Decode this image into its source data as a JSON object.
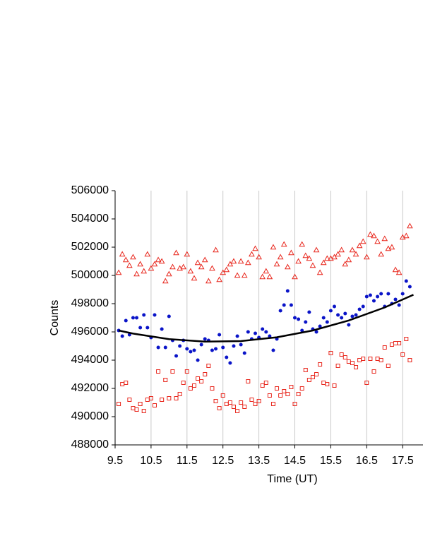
{
  "chart_data": {
    "type": "scatter",
    "x_label": "Time (UT)",
    "y_label": "Counts",
    "xlim": [
      9.5,
      18.3
    ],
    "ylim": [
      488000,
      506000
    ],
    "xticks": [
      9.5,
      10.5,
      11.5,
      12.5,
      13.5,
      14.5,
      15.5,
      16.5,
      17.5
    ],
    "yticks": [
      488000,
      490000,
      492000,
      494000,
      496000,
      498000,
      500000,
      502000,
      504000,
      506000
    ],
    "grid": "x",
    "x": [
      9.6,
      9.7,
      9.8,
      9.9,
      10.0,
      10.1,
      10.2,
      10.3,
      10.4,
      10.5,
      10.6,
      10.7,
      10.8,
      10.9,
      11.0,
      11.1,
      11.2,
      11.3,
      11.4,
      11.5,
      11.6,
      11.7,
      11.8,
      11.9,
      12.0,
      12.1,
      12.2,
      12.3,
      12.4,
      12.5,
      12.6,
      12.7,
      12.8,
      12.9,
      13.0,
      13.1,
      13.2,
      13.3,
      13.4,
      13.5,
      13.6,
      13.7,
      13.8,
      13.9,
      14.0,
      14.1,
      14.2,
      14.3,
      14.4,
      14.5,
      14.6,
      14.7,
      14.8,
      14.9,
      15.0,
      15.1,
      15.2,
      15.3,
      15.4,
      15.5,
      15.6,
      15.7,
      15.8,
      15.9,
      16.0,
      16.1,
      16.2,
      16.3,
      16.4,
      16.5,
      16.6,
      16.7,
      16.8,
      16.9,
      17.0,
      17.1,
      17.2,
      17.3,
      17.4,
      17.5,
      17.6,
      17.7
    ],
    "series": [
      {
        "marker": "triangle",
        "color": "#e8261c",
        "values": [
          500200,
          501500,
          501100,
          500700,
          501300,
          500100,
          500800,
          500300,
          501500,
          500500,
          500800,
          501100,
          501000,
          499600,
          500100,
          500600,
          501600,
          500500,
          500600,
          501500,
          500300,
          499800,
          500900,
          500600,
          501100,
          499600,
          500500,
          501800,
          499700,
          500200,
          500400,
          500800,
          501000,
          500000,
          501000,
          500000,
          500900,
          501500,
          501900,
          501300,
          499900,
          500300,
          499900,
          502000,
          500800,
          501300,
          502200,
          500600,
          501600,
          499900,
          501000,
          502200,
          501400,
          501200,
          500700,
          501800,
          500200,
          500900,
          501200,
          501200,
          501300,
          501500,
          501800,
          500800,
          501100,
          501800,
          501500,
          502100,
          502400,
          501300,
          502900,
          502800,
          502400,
          501500,
          502600,
          501900,
          502000,
          500400,
          500200,
          502700,
          502800,
          503500
        ]
      },
      {
        "marker": "circle",
        "color": "#0a14c8",
        "values": [
          496100,
          495700,
          496800,
          495800,
          497000,
          497000,
          496300,
          497200,
          496300,
          495600,
          497200,
          494900,
          496200,
          494900,
          497100,
          495400,
          494300,
          495000,
          495400,
          494800,
          494600,
          494700,
          494000,
          495100,
          495500,
          495400,
          494700,
          494800,
          495800,
          494900,
          494200,
          493800,
          495000,
          495700,
          495100,
          494500,
          496000,
          495500,
          495900,
          495600,
          496200,
          496000,
          495700,
          494700,
          495500,
          497500,
          497900,
          498900,
          497900,
          497000,
          496900,
          496100,
          496700,
          497400,
          496200,
          496000,
          496400,
          497000,
          496700,
          497500,
          497800,
          497200,
          497000,
          497300,
          496500,
          497100,
          497200,
          497600,
          497800,
          498500,
          498600,
          498200,
          498500,
          498700,
          497800,
          498700,
          498000,
          498300,
          497900,
          498700,
          499600,
          499200
        ]
      },
      {
        "marker": "square",
        "color": "#e8261c",
        "values": [
          490900,
          492300,
          492400,
          491200,
          490600,
          490500,
          490900,
          490400,
          491200,
          491300,
          490800,
          493200,
          491200,
          492600,
          491300,
          493200,
          491300,
          491600,
          492400,
          493200,
          492000,
          492200,
          492700,
          492500,
          493000,
          493600,
          492000,
          491100,
          490600,
          491500,
          490900,
          491000,
          490700,
          490400,
          491000,
          490700,
          492500,
          491200,
          490900,
          491100,
          492200,
          492400,
          491500,
          490900,
          492000,
          491500,
          491800,
          491600,
          492100,
          490900,
          491600,
          492000,
          493300,
          492600,
          492800,
          493000,
          493700,
          492400,
          492300,
          494500,
          492200,
          493600,
          494400,
          494200,
          493900,
          493800,
          493500,
          494000,
          494100,
          492400,
          494100,
          493200,
          494100,
          494000,
          494900,
          493600,
          495100,
          495200,
          495200,
          494400,
          495500,
          494000
        ]
      },
      {
        "marker": "line",
        "color": "#000000",
        "x": [
          9.6,
          10,
          11,
          12,
          13,
          14,
          15,
          16,
          17,
          17.8
        ],
        "values": [
          496100,
          495880,
          495490,
          495310,
          495350,
          495620,
          496100,
          496810,
          497730,
          498630
        ]
      }
    ]
  }
}
